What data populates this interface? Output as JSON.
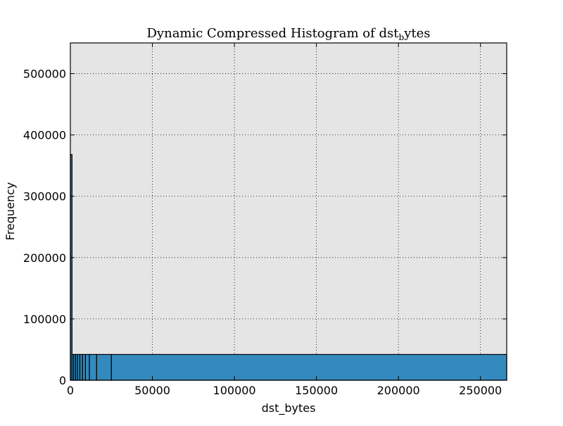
{
  "chart_data": {
    "type": "bar",
    "title_main": "Dynamic Compressed Histogram of dst",
    "title_sub": "b",
    "title_tail": "ytes",
    "xlabel": "dst_bytes",
    "ylabel": "Frequency",
    "xlim": [
      0,
      266000
    ],
    "ylim": [
      0,
      550000
    ],
    "xticks": [
      0,
      50000,
      100000,
      150000,
      200000,
      250000
    ],
    "xtick_labels": [
      "0",
      "50000",
      "100000",
      "150000",
      "200000",
      "250000"
    ],
    "yticks": [
      0,
      100000,
      200000,
      300000,
      400000,
      500000
    ],
    "ytick_labels": [
      "0",
      "100000",
      "200000",
      "300000",
      "400000",
      "500000"
    ],
    "grid": true,
    "legend": false,
    "bar_color": "#348abd",
    "plot_background": "#e5e5e5",
    "edges": [
      0,
      1000,
      2000,
      3200,
      4400,
      5800,
      7400,
      9200,
      11600,
      16000,
      25000,
      266000
    ],
    "heights": [
      368000,
      42000,
      42000,
      42000,
      42000,
      42000,
      42000,
      42000,
      42000,
      42000,
      42000
    ]
  }
}
